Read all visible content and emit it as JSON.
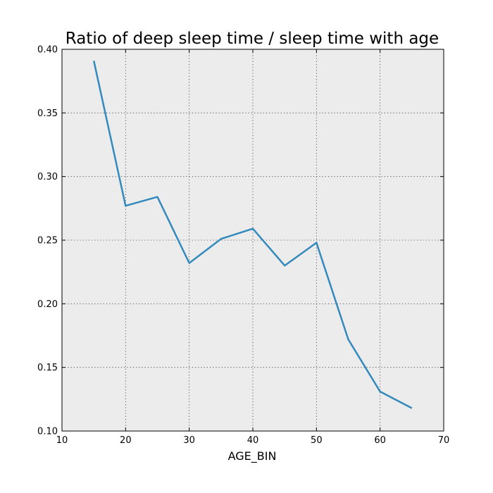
{
  "chart_data": {
    "type": "line",
    "title": "Ratio of deep sleep time / sleep time with age",
    "xlabel": "AGE_BIN",
    "ylabel": "",
    "xlim": [
      10,
      70
    ],
    "ylim": [
      0.1,
      0.4
    ],
    "x_ticks": [
      10,
      20,
      30,
      40,
      50,
      60,
      70
    ],
    "x_tick_labels": [
      "10",
      "20",
      "30",
      "40",
      "50",
      "60",
      "70"
    ],
    "y_ticks": [
      0.1,
      0.15,
      0.2,
      0.25,
      0.3,
      0.35,
      0.4
    ],
    "y_tick_labels": [
      "0.10",
      "0.15",
      "0.20",
      "0.25",
      "0.30",
      "0.35",
      "0.40"
    ],
    "grid": true,
    "series": [
      {
        "color": "#348abd",
        "x": [
          15,
          20,
          25,
          30,
          35,
          40,
          45,
          50,
          55,
          60,
          65
        ],
        "y": [
          0.391,
          0.277,
          0.284,
          0.232,
          0.251,
          0.259,
          0.23,
          0.248,
          0.172,
          0.131,
          0.118
        ]
      }
    ]
  }
}
